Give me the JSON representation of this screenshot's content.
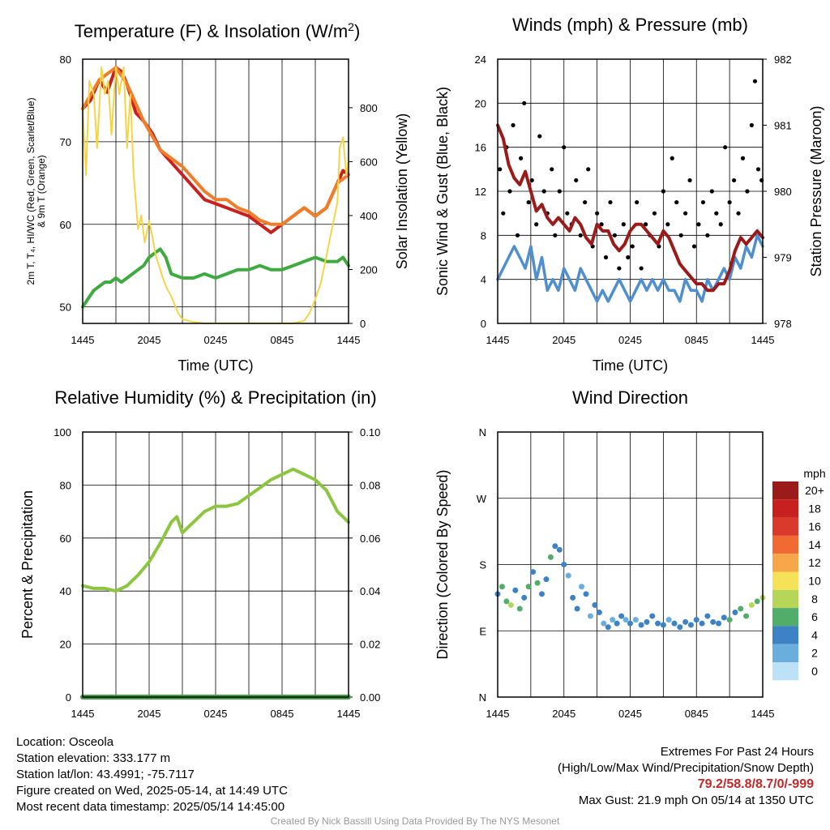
{
  "chart_data": [
    {
      "type": "line",
      "title": "Temperature (F) & Insolation (W/m²)",
      "xlabel": "Time (UTC)",
      "ylabel_left_lines": [
        "2m T, T₄, HI/WC (Red, Green, Scarlet/Blue)",
        "& 9m T (Orange)"
      ],
      "ylabel_right": "Solar Insolation (Yellow)",
      "x_ticks": [
        "1445",
        "2045",
        "0245",
        "0845",
        "1445"
      ],
      "ylim_left": [
        48,
        80
      ],
      "yticks_left": [
        50,
        60,
        70,
        80
      ],
      "ylim_right": [
        0,
        980
      ],
      "yticks_right": [
        0,
        200,
        400,
        600,
        800
      ],
      "grid": true,
      "series": [
        {
          "name": "2m T",
          "axis": "left",
          "color": "#c8201e",
          "x": [
            0,
            0.7,
            1.5,
            2.2,
            3,
            3.5,
            4,
            4.8,
            5.5,
            6.3,
            7,
            8,
            9,
            10,
            11,
            12,
            13,
            14,
            15,
            16,
            17,
            18,
            19,
            20,
            21,
            22,
            23,
            23.5,
            24
          ],
          "y": [
            74,
            75,
            77.5,
            76,
            79,
            78.5,
            77,
            73.5,
            72.5,
            71,
            69,
            67.5,
            66,
            64.5,
            63,
            62.5,
            62,
            61.5,
            61,
            60,
            59,
            60,
            61,
            62,
            61,
            62,
            65,
            66.5,
            66
          ]
        },
        {
          "name": "9m T",
          "axis": "left",
          "color": "#f07e28",
          "x": [
            0,
            1.5,
            3,
            4,
            5.5,
            7,
            8,
            9,
            10,
            11,
            12,
            13,
            14,
            15,
            16,
            17,
            18,
            19,
            20,
            21,
            22,
            23,
            24
          ],
          "y": [
            74,
            77.5,
            79,
            77,
            72.5,
            69,
            68,
            67,
            65.5,
            64,
            63,
            63,
            62,
            61.5,
            60.5,
            60,
            60,
            61,
            62,
            61,
            62,
            65,
            66
          ]
        },
        {
          "name": "2m Td",
          "axis": "left",
          "color": "#3faa3f",
          "x": [
            0,
            0.5,
            1,
            1.5,
            2,
            2.5,
            3,
            3.5,
            4,
            4.5,
            5,
            5.5,
            6,
            6.5,
            7,
            7.5,
            8,
            9,
            10,
            11,
            12,
            13,
            14,
            15,
            16,
            17,
            18,
            19,
            20,
            21,
            22,
            23,
            23.5,
            24
          ],
          "y": [
            50,
            51,
            52,
            52.5,
            53,
            53,
            53.5,
            53,
            53.5,
            54,
            54.5,
            55,
            56,
            56.5,
            57,
            56,
            54,
            53.5,
            53.5,
            54,
            53.5,
            54,
            54.5,
            54.5,
            55,
            54.5,
            54.5,
            55,
            55.5,
            56,
            55.5,
            55.5,
            56,
            55
          ]
        },
        {
          "name": "Insolation",
          "axis": "right",
          "color": "#f5d547",
          "x": [
            0,
            0.3,
            0.6,
            1,
            1.3,
            1.7,
            2,
            2.3,
            2.6,
            3,
            3.3,
            3.7,
            4,
            4.3,
            4.6,
            5,
            5.3,
            5.6,
            6,
            6.3,
            6.6,
            7,
            7.3,
            7.6,
            8,
            8.3,
            8.6,
            9,
            10,
            11,
            12,
            13,
            14,
            15,
            16,
            17,
            18,
            19,
            20,
            20.5,
            21,
            21.5,
            22,
            22.5,
            23,
            23.2,
            23.5,
            23.8,
            24
          ],
          "y": [
            800,
            550,
            900,
            850,
            650,
            950,
            850,
            900,
            700,
            950,
            850,
            950,
            650,
            850,
            550,
            350,
            400,
            300,
            380,
            320,
            250,
            200,
            160,
            130,
            100,
            70,
            40,
            15,
            5,
            0,
            0,
            0,
            0,
            0,
            0,
            0,
            0,
            0,
            10,
            40,
            90,
            150,
            250,
            350,
            450,
            650,
            690,
            550,
            600
          ]
        }
      ]
    },
    {
      "type": "line",
      "title": "Winds (mph) & Pressure (mb)",
      "xlabel": "Time (UTC)",
      "ylabel_left": "Sonic Wind & Gust (Blue, Black)",
      "ylabel_right": "Station Pressure (Maroon)",
      "x_ticks": [
        "1445",
        "2045",
        "0245",
        "0845",
        "1445"
      ],
      "ylim_left": [
        0,
        24
      ],
      "yticks_left": [
        0,
        4,
        8,
        12,
        16,
        20,
        24
      ],
      "ylim_right": [
        978,
        982
      ],
      "yticks_right": [
        978,
        979,
        980,
        981,
        982
      ],
      "grid": true,
      "series": [
        {
          "name": "Wind",
          "axis": "left",
          "color": "#4f8fcf",
          "x": [
            0,
            0.5,
            1,
            1.5,
            2,
            2.5,
            3,
            3.5,
            4,
            4.5,
            5,
            5.5,
            6,
            6.5,
            7,
            7.5,
            8,
            8.5,
            9,
            9.5,
            10,
            10.5,
            11,
            11.5,
            12,
            12.5,
            13,
            13.5,
            14,
            14.5,
            15,
            15.5,
            16,
            16.5,
            17,
            17.5,
            18,
            18.5,
            19,
            19.5,
            20,
            20.5,
            21,
            21.5,
            22,
            22.5,
            23,
            23.5,
            24
          ],
          "y": [
            4,
            5,
            6,
            7,
            6,
            5,
            7,
            4,
            6,
            3,
            4,
            3,
            5,
            4,
            3,
            5,
            4,
            3,
            2,
            3,
            2,
            3,
            4,
            3,
            2,
            3,
            4,
            3,
            4,
            3,
            4,
            3,
            3,
            2,
            4,
            3,
            3,
            2,
            4,
            3,
            4,
            5,
            4,
            6,
            5,
            7,
            6,
            8,
            7
          ]
        },
        {
          "name": "Gust",
          "axis": "left",
          "color": "#000000",
          "x": [
            0.2,
            0.5,
            0.8,
            1.1,
            1.4,
            1.8,
            2.1,
            2.4,
            2.8,
            3.1,
            3.5,
            3.8,
            4.2,
            4.5,
            4.9,
            5.2,
            5.6,
            6,
            6.3,
            6.7,
            7.1,
            7.5,
            7.9,
            8.2,
            8.6,
            9,
            9.4,
            9.8,
            10.2,
            10.6,
            11,
            11.4,
            11.8,
            12.2,
            12.6,
            13,
            13.4,
            13.8,
            14.2,
            14.6,
            15,
            15.4,
            15.8,
            16.2,
            16.6,
            17,
            17.4,
            17.8,
            18.2,
            18.6,
            19,
            19.4,
            19.8,
            20.2,
            20.6,
            21,
            21.4,
            21.8,
            22.2,
            22.6,
            23,
            23.3,
            23.6,
            23.9
          ],
          "y": [
            14,
            10,
            16,
            12,
            18,
            8,
            15,
            20,
            11,
            13,
            9,
            17,
            12,
            10,
            14,
            8,
            12,
            16,
            10,
            9,
            13,
            8,
            11,
            14,
            7,
            10,
            9,
            6,
            11,
            8,
            5,
            9,
            6,
            7,
            11,
            5,
            9,
            8,
            10,
            7,
            12,
            9,
            15,
            11,
            8,
            10,
            13,
            7,
            9,
            11,
            8,
            12,
            10,
            9,
            16,
            11,
            13,
            10,
            15,
            12,
            18,
            22,
            14,
            13
          ]
        },
        {
          "name": "Pressure",
          "axis": "right",
          "color": "#9b1b1b",
          "x": [
            0,
            0.5,
            1,
            1.5,
            2,
            2.5,
            3,
            3.5,
            4,
            4.5,
            5,
            5.5,
            6,
            6.5,
            7,
            7.5,
            8,
            8.5,
            9,
            9.5,
            10,
            10.5,
            11,
            11.5,
            12,
            12.5,
            13,
            13.5,
            14,
            14.5,
            15,
            15.5,
            16,
            16.5,
            17,
            17.5,
            18,
            18.5,
            19,
            19.5,
            20,
            20.5,
            21,
            21.5,
            22,
            22.5,
            23,
            23.5,
            24
          ],
          "y": [
            981,
            980.8,
            980.4,
            980.2,
            980.1,
            980.3,
            980,
            979.7,
            979.8,
            979.6,
            979.5,
            979.6,
            979.5,
            979.4,
            979.6,
            979.5,
            979.3,
            979.2,
            979.5,
            979.4,
            979.4,
            979.2,
            979.1,
            979.2,
            979.4,
            979.5,
            979.5,
            979.4,
            979.3,
            979.2,
            979.4,
            979.3,
            979.1,
            978.9,
            978.8,
            978.7,
            978.6,
            978.6,
            978.5,
            978.5,
            978.6,
            978.6,
            978.8,
            979.1,
            979.3,
            979.2,
            979.3,
            979.4,
            979.3
          ]
        }
      ]
    },
    {
      "type": "line",
      "title": "Relative Humidity (%) & Precipitation (in)",
      "ylabel_left": "Percent & Precipitation",
      "x_ticks": [
        "1445",
        "2045",
        "0245",
        "0845",
        "1445"
      ],
      "ylim_left": [
        0,
        100
      ],
      "yticks_left": [
        0,
        20,
        40,
        60,
        80,
        100
      ],
      "yticks_right": [
        "0.00",
        "0.02",
        "0.04",
        "0.06",
        "0.08",
        "0.10"
      ],
      "grid": true,
      "series": [
        {
          "name": "RH",
          "color": "#8cc63f",
          "x": [
            0,
            1,
            2,
            3,
            4,
            5,
            6,
            7,
            8,
            8.5,
            9,
            10,
            11,
            12,
            13,
            14,
            15,
            16,
            17,
            18,
            19,
            20,
            21,
            22,
            23,
            24
          ],
          "y": [
            42,
            41,
            41,
            40,
            42,
            46,
            51,
            58,
            66,
            68,
            62,
            66,
            70,
            72,
            72,
            73,
            76,
            79,
            82,
            84,
            86,
            84,
            82,
            78,
            70,
            66
          ]
        },
        {
          "name": "Precipitation",
          "color": "#3f9c45",
          "x": [
            0,
            24
          ],
          "y": [
            0,
            0
          ]
        }
      ]
    },
    {
      "type": "scatter",
      "title": "Wind Direction",
      "ylabel_left": "Direction (Colored By Speed)",
      "x_ticks": [
        "1445",
        "2045",
        "0245",
        "0845",
        "1445"
      ],
      "ylim_left": [
        0,
        360
      ],
      "yticks_left": [
        "N",
        "E",
        "S",
        "W",
        "N"
      ],
      "grid": true,
      "legend_title": "mph",
      "legend_labels": [
        "20+",
        "18",
        "16",
        "14",
        "12",
        "10",
        "8",
        "6",
        "4",
        "2",
        "0"
      ],
      "legend_colors": [
        "#9b1b1b",
        "#c8201e",
        "#d93a2b",
        "#f26a33",
        "#f8a64a",
        "#f6e258",
        "#b6d65a",
        "#52ad6a",
        "#3c82c4",
        "#6aaede",
        "#bde2f7"
      ],
      "series": [
        {
          "name": "Direction",
          "x": [
            0,
            0.4,
            0.8,
            1.2,
            1.6,
            2,
            2.4,
            2.8,
            3.2,
            3.6,
            4,
            4.4,
            4.8,
            5.2,
            5.6,
            6,
            6.4,
            6.8,
            7.2,
            7.6,
            8,
            8.4,
            8.8,
            9.2,
            9.6,
            10,
            10.4,
            10.8,
            11.2,
            11.6,
            12,
            12.5,
            13,
            13.5,
            14,
            14.5,
            15,
            15.5,
            16,
            16.5,
            17,
            17.5,
            18,
            18.5,
            19,
            19.5,
            20,
            20.5,
            21,
            21.5,
            22,
            22.5,
            23,
            23.5,
            24
          ],
          "y": [
            140,
            150,
            130,
            125,
            145,
            120,
            135,
            150,
            170,
            155,
            140,
            160,
            190,
            205,
            200,
            180,
            165,
            135,
            120,
            150,
            140,
            110,
            125,
            115,
            100,
            95,
            105,
            100,
            110,
            105,
            100,
            105,
            98,
            102,
            110,
            100,
            98,
            105,
            100,
            95,
            102,
            98,
            105,
            100,
            110,
            102,
            100,
            108,
            105,
            115,
            120,
            110,
            125,
            130,
            135
          ],
          "speed": [
            4,
            6,
            5,
            7,
            4,
            6,
            3,
            5,
            4,
            6,
            3,
            4,
            5,
            4,
            3,
            4,
            2,
            4,
            3,
            2,
            3,
            2,
            4,
            3,
            2,
            3,
            2,
            4,
            3,
            2,
            3,
            2,
            4,
            3,
            4,
            3,
            4,
            2,
            3,
            4,
            4,
            3,
            4,
            3,
            3,
            4,
            4,
            3,
            5,
            4,
            6,
            5,
            7,
            6,
            7
          ]
        }
      ]
    }
  ],
  "info": {
    "location": "Location: Osceola",
    "elevation": "Station elevation: 333.177 m",
    "latlon": "Station lat/lon: 43.4991; -75.7117",
    "created": "Figure created on Wed, 2025-05-14, at 14:49 UTC",
    "recent": "Most recent data timestamp: 2025/05/14 14:45:00"
  },
  "extremes": {
    "title": "Extremes For Past 24 Hours",
    "subtitle": "(High/Low/Max Wind/Precipitation/Snow Depth)",
    "values": "79.2/58.8/8.7/0/-999",
    "gust": "Max Gust: 21.9 mph On 05/14 at 1350 UTC"
  },
  "credit": "Created By Nick Bassill Using Data Provided By The NYS Mesonet"
}
